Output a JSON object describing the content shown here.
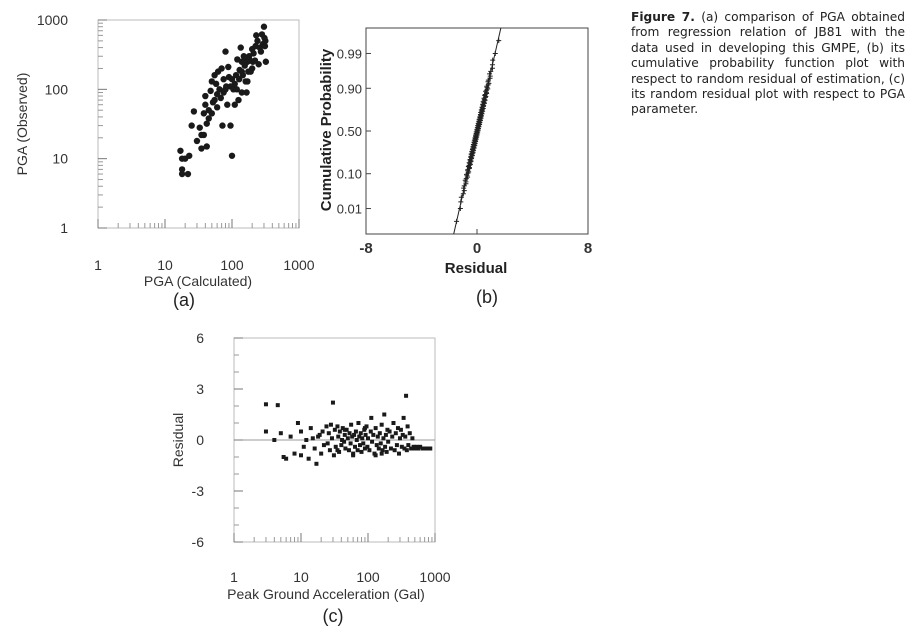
{
  "caption": {
    "label": "Figure 7.",
    "text": "(a) comparison of PGA obtained from regression relation of JB81 with the data used in developing this GMPE, (b) its cumulative probability function plot with respect to random residual of estimation, (c) its random residual plot with respect to PGA parameter."
  },
  "chart_data": [
    {
      "id": "a",
      "panel_label": "(a)",
      "type": "scatter",
      "xlabel": "PGA (Calculated)",
      "ylabel": "PGA (Observed)",
      "xscale": "log",
      "yscale": "log",
      "xlim": [
        1,
        1000
      ],
      "ylim": [
        1,
        1000
      ],
      "xticks": [
        "1",
        "10",
        "100",
        "1000"
      ],
      "yticks": [
        "1",
        "10",
        "100",
        "1000"
      ],
      "marker": "filled-circle",
      "points": [
        [
          17,
          13
        ],
        [
          18,
          10
        ],
        [
          18,
          7
        ],
        [
          18,
          6
        ],
        [
          20,
          10
        ],
        [
          22,
          6
        ],
        [
          23,
          11
        ],
        [
          25,
          30
        ],
        [
          27,
          48
        ],
        [
          30,
          18
        ],
        [
          33,
          28
        ],
        [
          35,
          22
        ],
        [
          35,
          14
        ],
        [
          38,
          22
        ],
        [
          38,
          45
        ],
        [
          40,
          60
        ],
        [
          40,
          80
        ],
        [
          42,
          15
        ],
        [
          42,
          32
        ],
        [
          45,
          38
        ],
        [
          45,
          50
        ],
        [
          48,
          95
        ],
        [
          50,
          45
        ],
        [
          50,
          130
        ],
        [
          52,
          65
        ],
        [
          55,
          70
        ],
        [
          55,
          160
        ],
        [
          58,
          120
        ],
        [
          60,
          55
        ],
        [
          60,
          85
        ],
        [
          62,
          180
        ],
        [
          65,
          100
        ],
        [
          68,
          75
        ],
        [
          70,
          200
        ],
        [
          72,
          30
        ],
        [
          75,
          90
        ],
        [
          75,
          140
        ],
        [
          80,
          350
        ],
        [
          80,
          100
        ],
        [
          82,
          110
        ],
        [
          85,
          60
        ],
        [
          88,
          210
        ],
        [
          90,
          150
        ],
        [
          95,
          110
        ],
        [
          95,
          30
        ],
        [
          100,
          11
        ],
        [
          100,
          140
        ],
        [
          105,
          100
        ],
        [
          110,
          120
        ],
        [
          110,
          60
        ],
        [
          115,
          160
        ],
        [
          118,
          100
        ],
        [
          120,
          270
        ],
        [
          125,
          70
        ],
        [
          128,
          140
        ],
        [
          130,
          190
        ],
        [
          135,
          400
        ],
        [
          140,
          250
        ],
        [
          140,
          180
        ],
        [
          145,
          160
        ],
        [
          150,
          300
        ],
        [
          155,
          220
        ],
        [
          160,
          130
        ],
        [
          160,
          280
        ],
        [
          165,
          90
        ],
        [
          170,
          250
        ],
        [
          175,
          180
        ],
        [
          180,
          300
        ],
        [
          185,
          260
        ],
        [
          190,
          180
        ],
        [
          200,
          200
        ],
        [
          205,
          250
        ],
        [
          210,
          330
        ],
        [
          220,
          260
        ],
        [
          225,
          420
        ],
        [
          230,
          600
        ],
        [
          240,
          500
        ],
        [
          250,
          230
        ],
        [
          260,
          400
        ],
        [
          270,
          350
        ],
        [
          280,
          620
        ],
        [
          290,
          450
        ],
        [
          300,
          800
        ],
        [
          305,
          550
        ],
        [
          310,
          420
        ],
        [
          315,
          500
        ],
        [
          320,
          250
        ],
        [
          200,
          380
        ],
        [
          170,
          130
        ],
        [
          140,
          90
        ]
      ]
    },
    {
      "id": "b",
      "panel_label": "(b)",
      "type": "scatter",
      "xlabel": "Residual",
      "ylabel": "Cumulative Probability",
      "xlim": [
        -8,
        8
      ],
      "yscale": "normal-probability",
      "ylim": [
        0.001,
        0.999
      ],
      "xticks": [
        "-8",
        "0",
        "8"
      ],
      "yticks": [
        "0.01",
        "0.10",
        "0.50",
        "0.90",
        "0.99"
      ],
      "marker": "plus",
      "fit_line": {
        "mean": 0.02,
        "sd": 0.55
      },
      "n_points": 150
    },
    {
      "id": "c",
      "panel_label": "(c)",
      "type": "scatter",
      "xlabel": "Peak Ground Acceleration (Gal)",
      "ylabel": "Residual",
      "xscale": "log",
      "xlim": [
        1,
        1000
      ],
      "ylim": [
        -6,
        6
      ],
      "xticks": [
        "1",
        "10",
        "100",
        "1000"
      ],
      "yticks": [
        "6",
        "3",
        "0",
        "-3",
        "-6"
      ],
      "marker": "filled-square",
      "points": [
        [
          3,
          2.1
        ],
        [
          3,
          0.5
        ],
        [
          4,
          0
        ],
        [
          4.5,
          2.05
        ],
        [
          5,
          0.4
        ],
        [
          5.5,
          -1.0
        ],
        [
          6,
          -1.1
        ],
        [
          7,
          0.2
        ],
        [
          8,
          -0.8
        ],
        [
          9,
          1.0
        ],
        [
          10,
          0.5
        ],
        [
          10,
          -0.9
        ],
        [
          11,
          -0.4
        ],
        [
          12,
          0
        ],
        [
          13,
          -1.1
        ],
        [
          14,
          0.7
        ],
        [
          15,
          0.1
        ],
        [
          16,
          -0.5
        ],
        [
          17,
          -1.4
        ],
        [
          18,
          0.2
        ],
        [
          19,
          0.3
        ],
        [
          20,
          -0.8
        ],
        [
          21,
          0.5
        ],
        [
          22,
          -0.3
        ],
        [
          24,
          0.8
        ],
        [
          25,
          -0.2
        ],
        [
          26,
          0.4
        ],
        [
          27,
          -0.6
        ],
        [
          28,
          0.9
        ],
        [
          29,
          0.1
        ],
        [
          30,
          2.2
        ],
        [
          31,
          -0.9
        ],
        [
          32,
          0.6
        ],
        [
          33,
          -0.4
        ],
        [
          35,
          0.8
        ],
        [
          36,
          0.2
        ],
        [
          37,
          -0.7
        ],
        [
          38,
          0.5
        ],
        [
          40,
          -0.3
        ],
        [
          41,
          0
        ],
        [
          42,
          0.7
        ],
        [
          44,
          -0.1
        ],
        [
          45,
          0.3
        ],
        [
          46,
          -0.5
        ],
        [
          48,
          0.6
        ],
        [
          50,
          0.1
        ],
        [
          52,
          -0.6
        ],
        [
          53,
          0.4
        ],
        [
          55,
          -0.2
        ],
        [
          56,
          0.9
        ],
        [
          58,
          0.2
        ],
        [
          60,
          -0.8
        ],
        [
          62,
          0.3
        ],
        [
          64,
          -0.4
        ],
        [
          66,
          0.5
        ],
        [
          68,
          0
        ],
        [
          70,
          -0.6
        ],
        [
          72,
          1.0
        ],
        [
          74,
          0.2
        ],
        [
          76,
          -0.3
        ],
        [
          78,
          0.4
        ],
        [
          80,
          -0.7
        ],
        [
          82,
          0.1
        ],
        [
          85,
          -0.2
        ],
        [
          88,
          0.6
        ],
        [
          90,
          -0.5
        ],
        [
          92,
          0.3
        ],
        [
          95,
          0.8
        ],
        [
          98,
          -0.4
        ],
        [
          100,
          0.1
        ],
        [
          105,
          -0.6
        ],
        [
          110,
          0.5
        ],
        [
          112,
          1.3
        ],
        [
          115,
          -0.1
        ],
        [
          120,
          0.3
        ],
        [
          125,
          -0.8
        ],
        [
          130,
          0.7
        ],
        [
          135,
          -0.3
        ],
        [
          140,
          0.2
        ],
        [
          145,
          -0.5
        ],
        [
          150,
          0.4
        ],
        [
          155,
          -0.2
        ],
        [
          160,
          0.9
        ],
        [
          165,
          -0.6
        ],
        [
          170,
          0.1
        ],
        [
          175,
          1.5
        ],
        [
          180,
          -0.4
        ],
        [
          185,
          0.3
        ],
        [
          190,
          -0.7
        ],
        [
          195,
          0.6
        ],
        [
          200,
          -0.1
        ],
        [
          210,
          0.5
        ],
        [
          220,
          -0.5
        ],
        [
          230,
          0.2
        ],
        [
          240,
          1.0
        ],
        [
          250,
          -0.6
        ],
        [
          260,
          0.4
        ],
        [
          270,
          -0.3
        ],
        [
          280,
          0.7
        ],
        [
          290,
          -0.8
        ],
        [
          300,
          0.1
        ],
        [
          310,
          0.6
        ],
        [
          320,
          -0.4
        ],
        [
          330,
          0.3
        ],
        [
          340,
          1.3
        ],
        [
          350,
          -0.5
        ],
        [
          360,
          0.2
        ],
        [
          370,
          2.6
        ],
        [
          380,
          -0.6
        ],
        [
          390,
          0.8
        ],
        [
          400,
          -0.3
        ],
        [
          420,
          0.4
        ],
        [
          440,
          -0.5
        ],
        [
          460,
          0.1
        ],
        [
          480,
          -0.4
        ],
        [
          500,
          -0.5
        ],
        [
          530,
          -0.4
        ],
        [
          560,
          -0.5
        ],
        [
          600,
          -0.4
        ],
        [
          650,
          -0.5
        ],
        [
          700,
          -0.5
        ],
        [
          750,
          -0.5
        ],
        [
          800,
          -0.5
        ],
        [
          850,
          -0.5
        ],
        [
          60,
          -0.9
        ],
        [
          90,
          0.7
        ],
        [
          130,
          -0.9
        ],
        [
          35,
          -0.6
        ],
        [
          45,
          0.6
        ],
        [
          160,
          -0.8
        ]
      ]
    }
  ]
}
